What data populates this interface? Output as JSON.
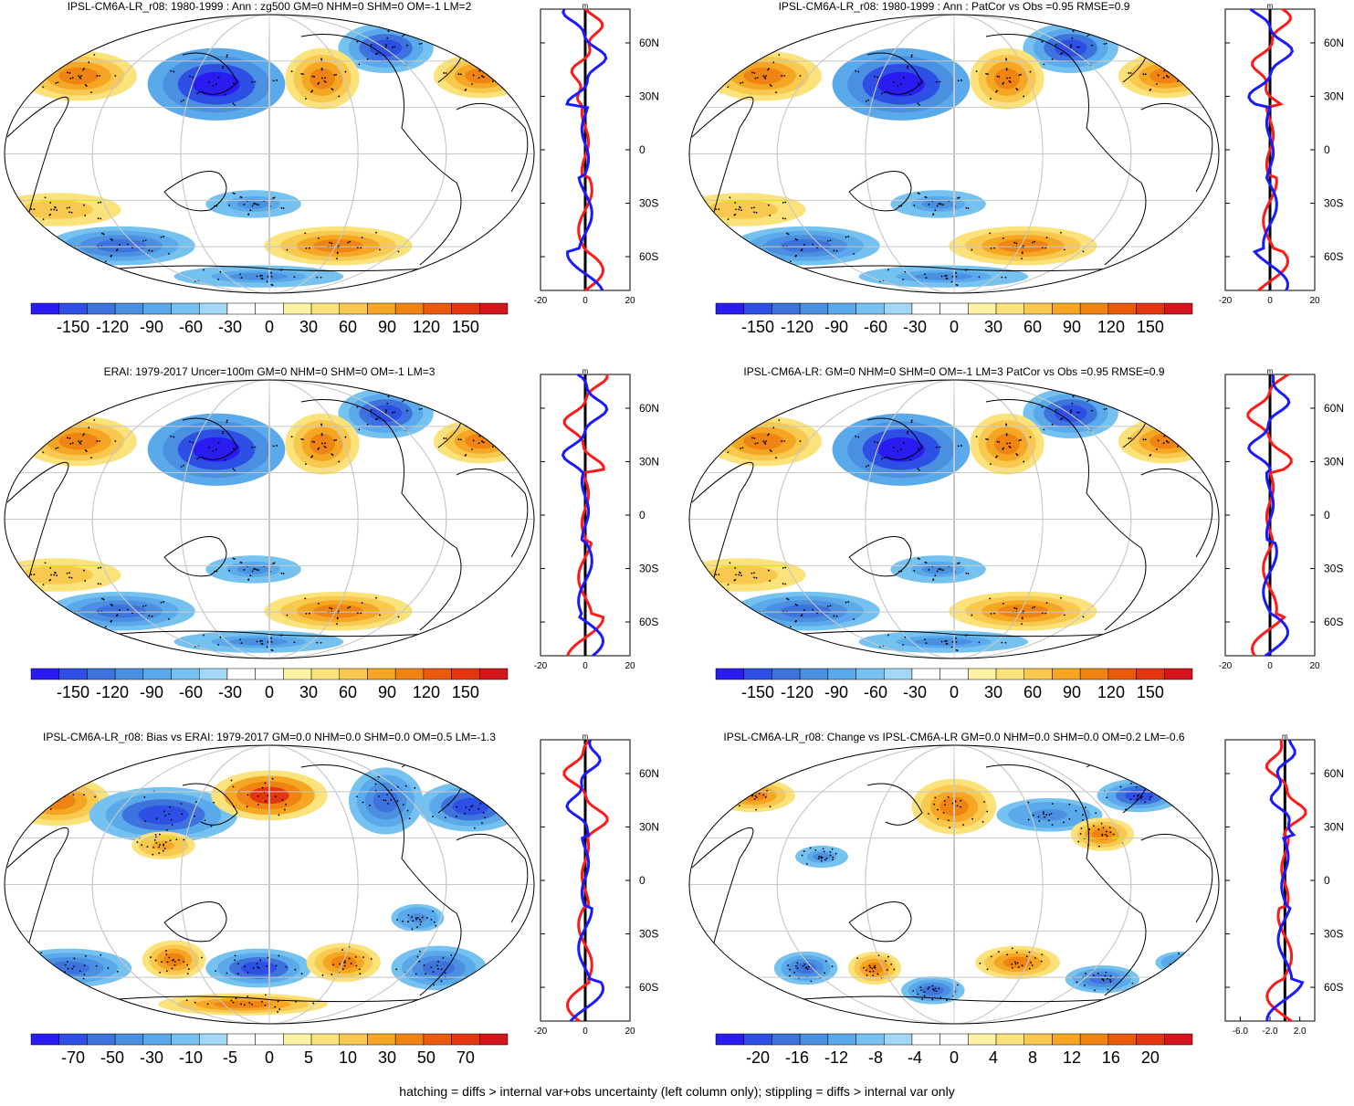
{
  "footer": "hatching = diffs > internal var+obs uncertainty (left column only); stippling = diffs > internal var only",
  "colors": {
    "neg": [
      "#2a1cf0",
      "#2e4fe6",
      "#3e73de",
      "#4a8fe0",
      "#5aa9ea",
      "#75c2f0",
      "#a2d8f5"
    ],
    "pos": [
      "#fdf2a4",
      "#fce27a",
      "#f9c94f",
      "#f5a623",
      "#f08412",
      "#ea5a0c",
      "#e23510",
      "#d4151a"
    ],
    "zonal_model": "#ff1a1a",
    "zonal_obs": "#1a1aff"
  },
  "panels": [
    {
      "title": "IPSL-CM6A-LR_r08: 1980-1999 : Ann : zg500 GM=0 NHM=0 SHM=0 OM=-1 LM=2",
      "colorbar": [
        "-150",
        "-120",
        "-90",
        "-60",
        "-30",
        "0",
        "30",
        "60",
        "90",
        "120",
        "150"
      ],
      "zonal": {
        "xlim": [
          -20,
          20
        ],
        "xticks": [
          "-20",
          "0",
          "20"
        ],
        "units": "m",
        "yticks": [
          "60N",
          "30N",
          "0",
          "30S",
          "60S"
        ]
      },
      "chart_data": {
        "type": "heatmap",
        "variable": "zg500",
        "period": "1980-1999",
        "season": "Ann",
        "levels": [
          -150,
          -120,
          -90,
          -60,
          -30,
          0,
          30,
          60,
          90,
          120,
          150
        ]
      }
    },
    {
      "title": "IPSL-CM6A-LR_r08: 1980-1999 : Ann : PatCor vs Obs =0.95 RMSE=0.9",
      "colorbar": [
        "-150",
        "-120",
        "-90",
        "-60",
        "-30",
        "0",
        "30",
        "60",
        "90",
        "120",
        "150"
      ],
      "zonal": {
        "xlim": [
          -20,
          20
        ],
        "xticks": [
          "-20",
          "0",
          "20"
        ],
        "units": "m",
        "yticks": [
          "60N",
          "30N",
          "0",
          "30S",
          "60S"
        ]
      },
      "chart_data": {
        "type": "heatmap",
        "pattern_correlation": 0.95,
        "rmse": 0.9,
        "levels": [
          -150,
          -120,
          -90,
          -60,
          -30,
          0,
          30,
          60,
          90,
          120,
          150
        ]
      }
    },
    {
      "title": "ERAI: 1979-2017 Uncer=100m GM=0 NHM=0 SHM=0 OM=-1 LM=3",
      "colorbar": [
        "-150",
        "-120",
        "-90",
        "-60",
        "-30",
        "0",
        "30",
        "60",
        "90",
        "120",
        "150"
      ],
      "zonal": {
        "xlim": [
          -20,
          20
        ],
        "xticks": [
          "-20",
          "0",
          "20"
        ],
        "units": "m",
        "yticks": [
          "60N",
          "30N",
          "0",
          "30S",
          "60S"
        ]
      },
      "chart_data": {
        "type": "heatmap",
        "dataset": "ERAI",
        "period": "1979-2017",
        "levels": [
          -150,
          -120,
          -90,
          -60,
          -30,
          0,
          30,
          60,
          90,
          120,
          150
        ]
      }
    },
    {
      "title": "IPSL-CM6A-LR: GM=0 NHM=0 SHM=0 OM=-1 LM=3 PatCor vs Obs =0.95 RMSE=0.9",
      "colorbar": [
        "-150",
        "-120",
        "-90",
        "-60",
        "-30",
        "0",
        "30",
        "60",
        "90",
        "120",
        "150"
      ],
      "zonal": {
        "xlim": [
          -20,
          20
        ],
        "xticks": [
          "-20",
          "0",
          "20"
        ],
        "units": "m",
        "yticks": [
          "60N",
          "30N",
          "0",
          "30S",
          "60S"
        ]
      },
      "chart_data": {
        "type": "heatmap",
        "pattern_correlation": 0.95,
        "rmse": 0.9,
        "levels": [
          -150,
          -120,
          -90,
          -60,
          -30,
          0,
          30,
          60,
          90,
          120,
          150
        ]
      }
    },
    {
      "title": "IPSL-CM6A-LR_r08: Bias vs ERAI: 1979-2017 GM=0.0 NHM=0.0 SHM=0.0 OM=0.5 LM=-1.3",
      "colorbar": [
        "-70",
        "-50",
        "-30",
        "-10",
        "-5",
        "0",
        "5",
        "10",
        "30",
        "50",
        "70"
      ],
      "zonal": {
        "xlim": [
          -20,
          20
        ],
        "xticks": [
          "-20",
          "0",
          "20"
        ],
        "units": "m",
        "yticks": [
          "60N",
          "30N",
          "0",
          "30S",
          "60S"
        ]
      },
      "chart_data": {
        "type": "heatmap",
        "comparison": "Bias vs ERAI",
        "levels": [
          -70,
          -50,
          -30,
          -10,
          -5,
          0,
          5,
          10,
          30,
          50,
          70
        ]
      }
    },
    {
      "title": "IPSL-CM6A-LR_r08: Change vs IPSL-CM6A-LR GM=0.0 NHM=0.0 SHM=0.0 OM=0.2 LM=-0.6",
      "colorbar": [
        "-20",
        "-16",
        "-12",
        "-8",
        "-4",
        "0",
        "4",
        "8",
        "12",
        "16",
        "20"
      ],
      "zonal": {
        "xlim": [
          -8,
          4
        ],
        "xticks": [
          "-6.0",
          "-2.0",
          "2.0"
        ],
        "units": "m",
        "yticks": [
          "60N",
          "30N",
          "0",
          "30S",
          "60S"
        ]
      },
      "chart_data": {
        "type": "heatmap",
        "comparison": "Change vs IPSL-CM6A-LR",
        "levels": [
          -20,
          -16,
          -12,
          -8,
          -4,
          0,
          4,
          8,
          12,
          16,
          20
        ]
      }
    }
  ]
}
